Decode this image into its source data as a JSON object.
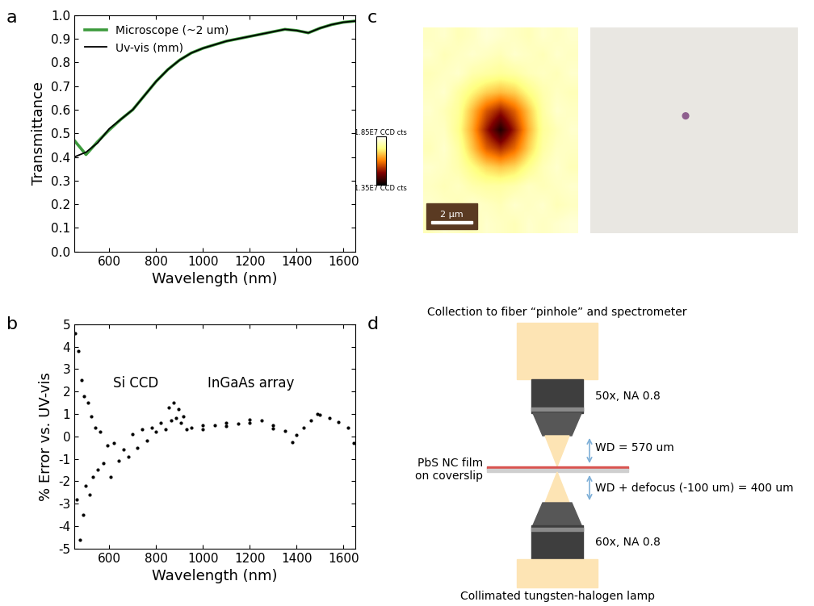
{
  "chart_data": [
    {
      "type": "line",
      "title": "a",
      "x_label": "Wavelength (nm)",
      "y_label": "Transmittance",
      "xlim": [
        450,
        1650
      ],
      "xticks": [
        600,
        800,
        1000,
        1200,
        1400,
        1600
      ],
      "ylim": [
        0,
        1
      ],
      "yticks": [
        {
          "value": 0,
          "label": "0.0"
        },
        {
          "value": 0.1,
          "label": "0.1"
        },
        {
          "value": 0.2,
          "label": "0.2"
        },
        {
          "value": 0.3,
          "label": "0.3"
        },
        {
          "value": 0.4,
          "label": "0.4"
        },
        {
          "value": 0.5,
          "label": "0.5"
        },
        {
          "value": 0.6,
          "label": "0.6"
        },
        {
          "value": 0.7,
          "label": "0.7"
        },
        {
          "value": 0.8,
          "label": "0.8"
        },
        {
          "value": 0.9,
          "label": "0.9"
        },
        {
          "value": 1,
          "label": "1.0"
        }
      ],
      "grid": false,
      "legend": "upper left",
      "x": [
        450,
        500,
        550,
        600,
        650,
        700,
        750,
        800,
        850,
        900,
        950,
        1000,
        1050,
        1100,
        1150,
        1200,
        1250,
        1300,
        1350,
        1400,
        1450,
        1500,
        1550,
        1600,
        1650
      ],
      "series": [
        {
          "name": "Microscope (~2 um)",
          "color": "#3d9b3d",
          "values": [
            0.47,
            0.41,
            0.465,
            0.515,
            0.56,
            0.6,
            0.66,
            0.72,
            0.77,
            0.81,
            0.84,
            0.86,
            0.875,
            0.89,
            0.9,
            0.91,
            0.92,
            0.93,
            0.94,
            0.935,
            0.925,
            0.945,
            0.96,
            0.97,
            0.975
          ]
        },
        {
          "name": "Uv-vis (mm)",
          "color": "#000000",
          "values": [
            0.4,
            0.42,
            0.46,
            0.52,
            0.56,
            0.6,
            0.66,
            0.72,
            0.77,
            0.81,
            0.84,
            0.86,
            0.875,
            0.89,
            0.9,
            0.91,
            0.92,
            0.93,
            0.94,
            0.935,
            0.925,
            0.945,
            0.96,
            0.97,
            0.975
          ]
        }
      ]
    },
    {
      "type": "scatter",
      "title": "b",
      "x_label": "Wavelength (nm)",
      "y_label": "% Error vs. UV-vis",
      "xlim": [
        450,
        1650
      ],
      "xticks": [
        600,
        800,
        1000,
        1200,
        1400,
        1600
      ],
      "ylim": [
        -5,
        5
      ],
      "yticks": [
        -5,
        -4,
        -3,
        -2,
        -1,
        0,
        1,
        2,
        3,
        4,
        5
      ],
      "grid": false,
      "color": "#000000",
      "marker": "o",
      "annotations": [
        "Si CCD",
        "InGaAs array"
      ],
      "x": [
        455,
        462,
        468,
        475,
        480,
        487,
        492,
        500,
        508,
        515,
        522,
        530,
        540,
        550,
        560,
        575,
        590,
        605,
        620,
        640,
        660,
        680,
        700,
        720,
        740,
        760,
        780,
        800,
        820,
        840,
        855,
        865,
        875,
        885,
        895,
        905,
        915,
        930,
        950,
        1000,
        1000,
        1050,
        1100,
        1100,
        1150,
        1200,
        1200,
        1250,
        1300,
        1300,
        1350,
        1380,
        1400,
        1430,
        1460,
        1490,
        1500,
        1540,
        1580,
        1620,
        1645
      ],
      "values": [
        4.6,
        -2.8,
        3.8,
        -4.6,
        2.5,
        -3.5,
        1.8,
        -2.2,
        1.5,
        -2.6,
        0.9,
        -1.8,
        0.4,
        -1.5,
        0.2,
        -1.2,
        -0.4,
        -1.8,
        -0.3,
        -1.1,
        -0.6,
        -0.9,
        0.1,
        -0.5,
        0.3,
        -0.2,
        0.4,
        0.2,
        0.6,
        0.3,
        1.3,
        0.7,
        1.5,
        0.8,
        1.2,
        0.6,
        0.9,
        0.3,
        0.4,
        0.5,
        0.3,
        0.5,
        0.6,
        0.45,
        0.55,
        0.75,
        0.6,
        0.7,
        0.5,
        0.35,
        0.25,
        -0.25,
        0.05,
        0.4,
        0.7,
        1.0,
        0.95,
        0.8,
        0.65,
        0.4,
        -0.3
      ]
    },
    {
      "type": "heatmap",
      "title": "c",
      "xlim": [
        0,
        7.6
      ],
      "ylim": [
        0,
        7.6
      ],
      "tick_labels": false,
      "cells": [
        [
          17900000.0,
          18000000.0,
          17800000.0,
          17900000.0,
          18100000.0,
          18000000.0,
          17900000.0,
          17800000.0,
          18000000.0,
          17900000.0,
          18000000.0
        ],
        [
          18000000.0,
          17800000.0,
          17900000.0,
          18000000.0,
          17900000.0,
          17800000.0,
          18000000.0,
          17900000.0,
          17800000.0,
          18000000.0,
          17900000.0
        ],
        [
          17800000.0,
          17900000.0,
          18000000.0,
          17700000.0,
          17600000.0,
          17500000.0,
          17600000.0,
          17800000.0,
          17900000.0,
          17800000.0,
          18000000.0
        ],
        [
          17900000.0,
          18000000.0,
          17600000.0,
          17200000.0,
          16800000.0,
          16600000.0,
          16800000.0,
          17300000.0,
          17700000.0,
          17900000.0,
          17800000.0
        ],
        [
          18000000.0,
          17800000.0,
          17500000.0,
          16600000.0,
          15600000.0,
          15000000.0,
          15700000.0,
          16700000.0,
          17600000.0,
          18000000.0,
          17900000.0
        ],
        [
          17900000.0,
          17900000.0,
          17400000.0,
          16400000.0,
          15000000.0,
          13800000.0,
          15100000.0,
          16500000.0,
          17500000.0,
          17800000.0,
          18000000.0
        ],
        [
          17800000.0,
          18000000.0,
          17600000.0,
          16700000.0,
          15700000.0,
          15200000.0,
          15800000.0,
          16800000.0,
          17600000.0,
          17900000.0,
          17900000.0
        ],
        [
          18000000.0,
          17900000.0,
          17700000.0,
          17300000.0,
          16900000.0,
          16700000.0,
          16900000.0,
          17400000.0,
          17800000.0,
          18000000.0,
          17800000.0
        ],
        [
          17900000.0,
          17800000.0,
          17900000.0,
          17700000.0,
          17600000.0,
          17600000.0,
          17700000.0,
          17900000.0,
          17800000.0,
          17900000.0,
          18000000.0
        ],
        [
          18000000.0,
          17900000.0,
          17800000.0,
          18000000.0,
          17900000.0,
          17800000.0,
          18000000.0,
          17900000.0,
          18000000.0,
          17800000.0,
          17900000.0
        ],
        [
          17800000.0,
          18000000.0,
          17900000.0,
          17800000.0,
          18000000.0,
          17900000.0,
          17800000.0,
          18000000.0,
          17900000.0,
          18000000.0,
          18100000.0
        ]
      ],
      "colorbar_range": [
        13500000.0,
        18500000.0
      ],
      "colorbar_ticks": [
        {
          "value": 18500000.0,
          "label": "1.85E7 CCD cts"
        },
        {
          "value": 13500000.0,
          "label": "1.35E7 CCD cts"
        }
      ],
      "scale_bar": {
        "length": 2,
        "label": "2 µm"
      }
    }
  ],
  "diagram": {
    "title": "d",
    "labels": {
      "collection": "Collection to fiber “pinhole” and spectrometer",
      "top_objective": "50x, NA 0.8",
      "top_working_distance": "WD = 570 um",
      "sample": "PbS NC film\non coverslip",
      "bottom_working_distance": "WD + defocus (-100 um) = 400 um",
      "bottom_objective": "60x, NA 0.8",
      "source": "Collimated tungsten-halogen lamp"
    }
  }
}
